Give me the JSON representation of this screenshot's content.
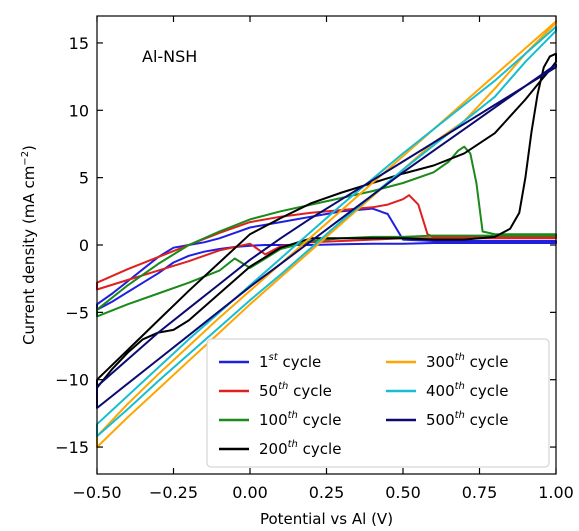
{
  "chart_data": {
    "type": "line",
    "annotation": "Al-NSH",
    "xlabel": "Potential vs Al (V)",
    "ylabel": "Current density (mA cm",
    "ylabel_sup": "−2",
    "ylabel_end": ")",
    "xlim": [
      -0.5,
      1.0
    ],
    "ylim": [
      -17,
      17
    ],
    "xticks": [
      -0.5,
      -0.25,
      0.0,
      0.25,
      0.5,
      0.75,
      1.0
    ],
    "xtick_labels": [
      "−0.50",
      "−0.25",
      "0.00",
      "0.25",
      "0.50",
      "0.75",
      "1.00"
    ],
    "yticks": [
      -15,
      -10,
      -5,
      0,
      5,
      10,
      15
    ],
    "ytick_labels": [
      "−15",
      "−10",
      "−5",
      "0",
      "5",
      "10",
      "15"
    ],
    "grid": false,
    "legend_position": "bottom-right",
    "series": [
      {
        "name": "1st cycle",
        "num": "1",
        "sup": "st",
        "suffix": " cycle",
        "color": "#1f1fe0",
        "x": [
          -0.5,
          -0.45,
          -0.4,
          -0.35,
          -0.3,
          -0.25,
          -0.2,
          -0.15,
          -0.1,
          -0.05,
          0.0,
          0.05,
          0.1,
          0.2,
          0.3,
          0.4,
          0.5,
          0.6,
          0.7,
          0.8,
          0.9,
          1.0,
          1.0,
          0.9,
          0.8,
          0.7,
          0.6,
          0.5,
          0.45,
          0.4,
          0.35,
          0.3,
          0.25,
          0.2,
          0.1,
          0.0,
          -0.05,
          -0.1,
          -0.15,
          -0.2,
          -0.25,
          -0.3,
          -0.35,
          -0.4,
          -0.45,
          -0.5
        ],
        "y": [
          -4.8,
          -4.2,
          -3.5,
          -2.8,
          -2.1,
          -1.3,
          -0.8,
          -0.5,
          -0.3,
          -0.15,
          -0.05,
          0.0,
          0.0,
          0.0,
          0.05,
          0.1,
          0.1,
          0.15,
          0.15,
          0.15,
          0.15,
          0.15,
          0.3,
          0.3,
          0.3,
          0.3,
          0.3,
          0.4,
          2.3,
          2.7,
          2.6,
          2.5,
          2.3,
          2.1,
          1.7,
          1.3,
          0.9,
          0.5,
          0.2,
          0.0,
          -0.2,
          -0.9,
          -1.8,
          -2.7,
          -3.6,
          -4.4
        ]
      },
      {
        "name": "50th cycle",
        "num": "50",
        "sup": "th",
        "suffix": " cycle",
        "color": "#e01f1f",
        "x": [
          -0.5,
          -0.4,
          -0.3,
          -0.2,
          -0.1,
          0.0,
          0.05,
          0.1,
          0.2,
          0.3,
          0.4,
          0.5,
          0.6,
          0.7,
          0.8,
          0.9,
          1.0,
          1.0,
          0.9,
          0.8,
          0.7,
          0.6,
          0.58,
          0.55,
          0.52,
          0.5,
          0.45,
          0.4,
          0.3,
          0.2,
          0.1,
          0.0,
          -0.1,
          -0.2,
          -0.3,
          -0.4,
          -0.5
        ],
        "y": [
          -3.3,
          -2.6,
          -1.9,
          -1.2,
          -0.4,
          0.1,
          -0.7,
          -0.1,
          0.2,
          0.3,
          0.4,
          0.5,
          0.5,
          0.5,
          0.5,
          0.5,
          0.5,
          0.6,
          0.6,
          0.6,
          0.6,
          0.6,
          0.8,
          3.0,
          3.7,
          3.4,
          3.0,
          2.8,
          2.6,
          2.4,
          2.1,
          1.7,
          0.9,
          0.0,
          -0.9,
          -1.8,
          -2.8
        ]
      },
      {
        "name": "100th cycle",
        "num": "100",
        "sup": "th",
        "suffix": " cycle",
        "color": "#1a8a1a",
        "x": [
          -0.5,
          -0.4,
          -0.3,
          -0.2,
          -0.1,
          -0.05,
          0.0,
          0.05,
          0.1,
          0.2,
          0.3,
          0.4,
          0.5,
          0.6,
          0.7,
          0.8,
          0.9,
          1.0,
          1.0,
          0.9,
          0.8,
          0.76,
          0.74,
          0.72,
          0.7,
          0.68,
          0.65,
          0.6,
          0.5,
          0.4,
          0.3,
          0.2,
          0.1,
          0.0,
          -0.1,
          -0.2,
          -0.3,
          -0.4,
          -0.5
        ],
        "y": [
          -5.3,
          -4.4,
          -3.6,
          -2.8,
          -1.9,
          -1.0,
          -1.7,
          -1.0,
          -0.3,
          0.3,
          0.5,
          0.6,
          0.6,
          0.7,
          0.7,
          0.7,
          0.7,
          0.7,
          0.8,
          0.8,
          0.8,
          1.0,
          4.6,
          6.8,
          7.3,
          7.0,
          6.2,
          5.4,
          4.6,
          4.0,
          3.5,
          3.0,
          2.5,
          1.9,
          1.0,
          0.0,
          -1.4,
          -3.0,
          -4.8
        ]
      },
      {
        "name": "200th cycle",
        "num": "200",
        "sup": "th",
        "suffix": " cycle",
        "color": "#000000",
        "x": [
          -0.5,
          -0.45,
          -0.4,
          -0.35,
          -0.3,
          -0.25,
          -0.2,
          -0.1,
          0.0,
          0.1,
          0.2,
          0.3,
          0.4,
          0.5,
          0.6,
          0.7,
          0.8,
          0.85,
          0.88,
          0.9,
          0.92,
          0.94,
          0.96,
          0.98,
          1.0,
          1.0,
          0.98,
          0.95,
          0.9,
          0.8,
          0.7,
          0.6,
          0.5,
          0.4,
          0.3,
          0.2,
          0.1,
          0.0,
          -0.1,
          -0.2,
          -0.3,
          -0.4,
          -0.5
        ],
        "y": [
          -10.6,
          -9.2,
          -8.0,
          -7.0,
          -6.5,
          -6.3,
          -5.6,
          -3.6,
          -1.6,
          -0.2,
          0.5,
          0.5,
          0.5,
          0.5,
          0.4,
          0.4,
          0.6,
          1.2,
          2.4,
          5.0,
          8.4,
          11.2,
          13.2,
          14.0,
          14.2,
          13.6,
          13.0,
          12.2,
          10.8,
          8.3,
          6.8,
          5.9,
          5.3,
          4.6,
          3.9,
          3.1,
          2.0,
          0.8,
          -1.3,
          -3.4,
          -5.6,
          -7.8,
          -10.0
        ]
      },
      {
        "name": "300th cycle",
        "num": "300",
        "sup": "th",
        "suffix": " cycle",
        "color": "#ffa500",
        "x": [
          -0.5,
          -0.4,
          -0.3,
          -0.2,
          -0.1,
          0.0,
          0.1,
          0.2,
          0.3,
          0.4,
          0.5,
          0.6,
          0.7,
          0.8,
          0.9,
          1.0,
          1.0,
          0.9,
          0.8,
          0.7,
          0.6,
          0.5,
          0.4,
          0.3,
          0.2,
          0.1,
          0.0,
          -0.1,
          -0.2,
          -0.3,
          -0.4,
          -0.5
        ],
        "y": [
          -15.0,
          -12.8,
          -10.7,
          -8.6,
          -6.5,
          -4.4,
          -2.4,
          -0.4,
          1.6,
          3.6,
          5.6,
          7.6,
          9.2,
          11.6,
          14.2,
          16.5,
          16.6,
          14.6,
          12.6,
          10.6,
          8.6,
          6.6,
          4.6,
          2.6,
          0.6,
          -1.4,
          -3.4,
          -5.4,
          -7.5,
          -9.6,
          -11.8,
          -14.2
        ]
      },
      {
        "name": "400th cycle",
        "num": "400",
        "sup": "th",
        "suffix": " cycle",
        "color": "#17becf",
        "x": [
          -0.5,
          -0.4,
          -0.3,
          -0.2,
          -0.1,
          0.0,
          0.1,
          0.2,
          0.3,
          0.4,
          0.5,
          0.6,
          0.7,
          0.8,
          0.9,
          1.0,
          1.0,
          0.9,
          0.8,
          0.7,
          0.6,
          0.5,
          0.4,
          0.3,
          0.2,
          0.1,
          0.0,
          -0.1,
          -0.2,
          -0.3,
          -0.4,
          -0.5
        ],
        "y": [
          -14.2,
          -12.2,
          -10.1,
          -8.1,
          -6.1,
          -4.1,
          -2.2,
          -0.2,
          1.8,
          3.7,
          5.6,
          7.4,
          9.2,
          11.0,
          13.6,
          15.9,
          16.2,
          14.2,
          12.2,
          10.4,
          8.6,
          6.8,
          4.9,
          3.0,
          1.0,
          -1.0,
          -3.0,
          -5.0,
          -7.0,
          -9.1,
          -11.2,
          -13.3
        ]
      },
      {
        "name": "500th cycle",
        "num": "500",
        "sup": "th",
        "suffix": " cycle",
        "color": "#0a0a70",
        "x": [
          -0.5,
          -0.4,
          -0.3,
          -0.2,
          -0.1,
          0.0,
          0.1,
          0.2,
          0.3,
          0.4,
          0.5,
          0.6,
          0.7,
          0.8,
          0.9,
          0.95,
          1.0,
          1.0,
          0.9,
          0.8,
          0.7,
          0.6,
          0.5,
          0.4,
          0.3,
          0.2,
          0.1,
          0.0,
          -0.1,
          -0.2,
          -0.3,
          -0.4,
          -0.5
        ],
        "y": [
          -12.1,
          -10.3,
          -8.5,
          -6.7,
          -4.9,
          -3.1,
          -1.4,
          0.3,
          2.0,
          3.7,
          5.4,
          7.0,
          8.6,
          10.2,
          11.8,
          12.6,
          13.4,
          13.2,
          11.8,
          10.4,
          9.0,
          7.6,
          6.2,
          4.8,
          3.4,
          2.0,
          0.5,
          -1.1,
          -2.9,
          -4.7,
          -6.5,
          -8.5,
          -10.5
        ]
      }
    ]
  }
}
